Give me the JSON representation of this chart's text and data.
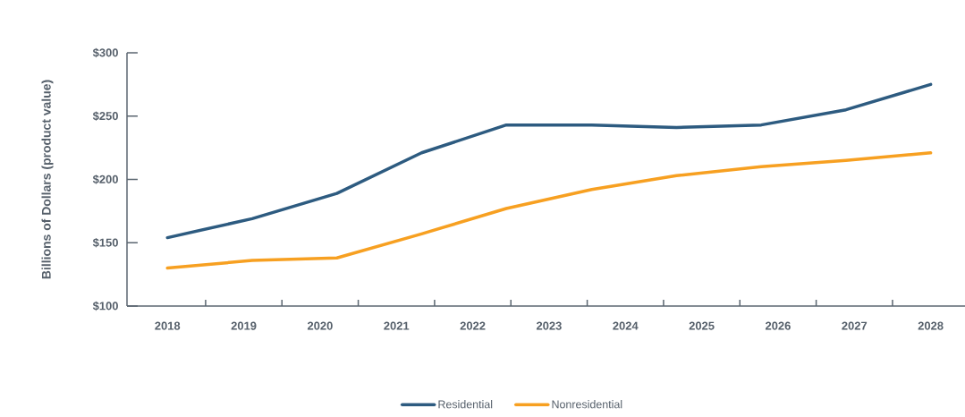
{
  "chart_data": {
    "type": "line",
    "ylabel": "Billions of Dollars (product value)",
    "x": [
      2018,
      2019.11,
      2020.22,
      2021.33,
      2022.44,
      2023.56,
      2024.67,
      2025.78,
      2026.89,
      2028
    ],
    "series": [
      {
        "name": "Residential",
        "color": "#2d5b80",
        "values": [
          154,
          169,
          189,
          221,
          243,
          243,
          241,
          243,
          255,
          275
        ]
      },
      {
        "name": "Nonresidential",
        "color": "#f7a021",
        "values": [
          130,
          136,
          138,
          157,
          177,
          192,
          203,
          210,
          215,
          221
        ]
      }
    ],
    "xlim": [
      2017.47,
      2028.45
    ],
    "xticks": [
      2018,
      2019,
      2020,
      2021,
      2022,
      2023,
      2024,
      2025,
      2026,
      2027,
      2028,
      {
        "value": 2018.5,
        "label": null
      },
      {
        "value": 2019.5,
        "label": null
      },
      {
        "value": 2020.5,
        "label": null
      },
      {
        "value": 2021.5,
        "label": null
      },
      {
        "value": 2022.5,
        "label": null
      },
      {
        "value": 2023.5,
        "label": null
      },
      {
        "value": 2024.5,
        "label": null
      },
      {
        "value": 2025.5,
        "label": null
      },
      {
        "value": 2026.5,
        "label": null
      },
      {
        "value": 2027.5,
        "label": null
      }
    ],
    "ylim": [
      100,
      300
    ],
    "yticks": [
      {
        "value": 100,
        "label": "$100"
      },
      {
        "value": 150,
        "label": "$150"
      },
      {
        "value": 200,
        "label": "$200"
      },
      {
        "value": 250,
        "label": "$250"
      },
      {
        "value": 300,
        "label": "$300"
      }
    ],
    "legend": "bottom",
    "marker": "none",
    "line_style": "solid"
  }
}
